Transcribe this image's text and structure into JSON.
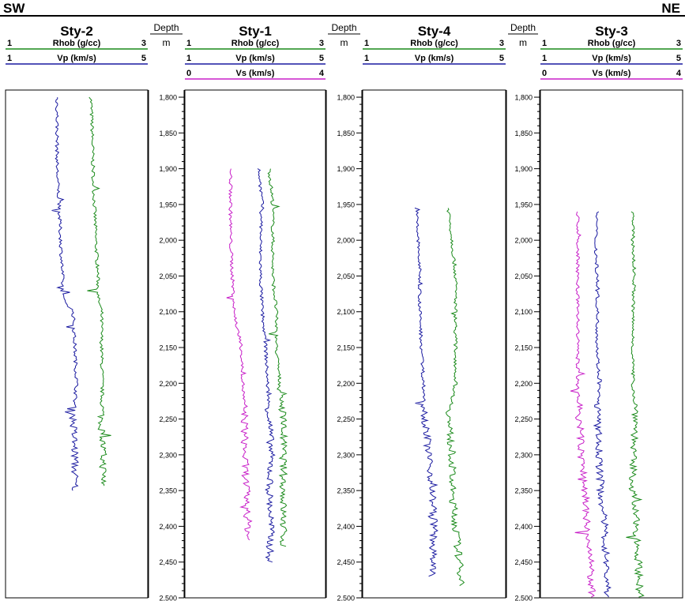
{
  "header": {
    "left": "SW",
    "right": "NE"
  },
  "depth_track": {
    "title": "Depth",
    "unit": "m"
  },
  "colors": {
    "rhob": "#1a8a1a",
    "vp": "#1a1aa0",
    "vs": "#c81ec8"
  },
  "chart_data": {
    "type": "line",
    "y_axis": {
      "label": "Depth",
      "unit": "m",
      "range": [
        1790,
        2500
      ],
      "ticks": [
        1800,
        1850,
        1900,
        1950,
        2000,
        2050,
        2100,
        2150,
        2200,
        2250,
        2300,
        2350,
        2400,
        2450,
        2500
      ],
      "tick_labels": [
        "1,800",
        "1,850",
        "1,900",
        "1,950",
        "2,000",
        "2,050",
        "2,100",
        "2,150",
        "2,200",
        "2,250",
        "2,300",
        "2,350",
        "2,400",
        "2,450",
        "2,500"
      ],
      "inverted": true
    },
    "wells": [
      {
        "name": "Sty-2",
        "curves": [
          {
            "name": "Rhob (g/cc)",
            "min_label": "1",
            "max_label": "3",
            "xmin": 1,
            "xmax": 3,
            "color": "#1a8a1a",
            "depth": [
              1800,
              1850,
              1900,
              1950,
              2000,
              2050,
              2080,
              2100,
              2150,
              2200,
              2250,
              2300,
              2345
            ],
            "values": [
              2.2,
              2.22,
              2.23,
              2.25,
              2.27,
              2.3,
              2.3,
              2.35,
              2.35,
              2.36,
              2.35,
              2.37,
              2.38
            ]
          },
          {
            "name": "Vp (km/s)",
            "min_label": "1",
            "max_label": "5",
            "xmin": 1,
            "xmax": 5,
            "color": "#1a1aa0",
            "depth": [
              1800,
              1850,
              1900,
              1950,
              2000,
              2050,
              2080,
              2100,
              2150,
              2200,
              2250,
              2300,
              2350
            ],
            "values": [
              2.45,
              2.45,
              2.45,
              2.5,
              2.55,
              2.6,
              2.6,
              2.9,
              2.95,
              3.0,
              2.9,
              2.95,
              2.95
            ]
          }
        ]
      },
      {
        "name": "Sty-1",
        "curves": [
          {
            "name": "Rhob (g/cc)",
            "min_label": "1",
            "max_label": "3",
            "xmin": 1,
            "xmax": 3,
            "color": "#1a8a1a",
            "depth": [
              1900,
              1950,
              2000,
              2050,
              2100,
              2150,
              2200,
              2250,
              2300,
              2350,
              2400,
              2430
            ],
            "values": [
              2.2,
              2.25,
              2.25,
              2.25,
              2.3,
              2.3,
              2.35,
              2.4,
              2.4,
              2.4,
              2.4,
              2.4
            ]
          },
          {
            "name": "Vp (km/s)",
            "min_label": "1",
            "max_label": "5",
            "xmin": 1,
            "xmax": 5,
            "color": "#1a1aa0",
            "depth": [
              1900,
              1950,
              2000,
              2050,
              2100,
              2150,
              2200,
              2250,
              2300,
              2350,
              2400,
              2450
            ],
            "values": [
              3.1,
              3.2,
              3.15,
              3.15,
              3.2,
              3.3,
              3.35,
              3.4,
              3.45,
              3.4,
              3.45,
              3.4
            ]
          },
          {
            "name": "Vs (km/s)",
            "min_label": "0",
            "max_label": "4",
            "xmin": 0,
            "xmax": 4,
            "color": "#c81ec8",
            "depth": [
              1900,
              1950,
              2000,
              2050,
              2100,
              2150,
              2200,
              2250,
              2300,
              2350,
              2400,
              2420
            ],
            "values": [
              1.3,
              1.3,
              1.3,
              1.35,
              1.4,
              1.6,
              1.65,
              1.7,
              1.7,
              1.75,
              1.8,
              1.8
            ]
          }
        ]
      },
      {
        "name": "Sty-4",
        "curves": [
          {
            "name": "Rhob (g/cc)",
            "min_label": "1",
            "max_label": "3",
            "xmin": 1,
            "xmax": 3,
            "color": "#1a8a1a",
            "depth": [
              1955,
              2000,
              2050,
              2100,
              2150,
              2200,
              2250,
              2300,
              2350,
              2400,
              2450,
              2485
            ],
            "values": [
              2.2,
              2.25,
              2.3,
              2.3,
              2.3,
              2.3,
              2.2,
              2.25,
              2.25,
              2.3,
              2.35,
              2.4
            ]
          },
          {
            "name": "Vp (km/s)",
            "min_label": "1",
            "max_label": "5",
            "xmin": 1,
            "xmax": 5,
            "color": "#1a1aa0",
            "depth": [
              1955,
              2000,
              2050,
              2100,
              2150,
              2200,
              2250,
              2300,
              2350,
              2400,
              2450,
              2470
            ],
            "values": [
              2.5,
              2.55,
              2.6,
              2.6,
              2.65,
              2.7,
              2.75,
              2.85,
              2.95,
              3.0,
              2.95,
              2.95
            ]
          }
        ]
      },
      {
        "name": "Sty-3",
        "curves": [
          {
            "name": "Rhob (g/cc)",
            "min_label": "1",
            "max_label": "3",
            "xmin": 1,
            "xmax": 3,
            "color": "#1a8a1a",
            "depth": [
              1960,
              2000,
              2050,
              2100,
              2150,
              2200,
              2250,
              2300,
              2350,
              2400,
              2450,
              2500
            ],
            "values": [
              2.3,
              2.3,
              2.32,
              2.3,
              2.3,
              2.3,
              2.35,
              2.3,
              2.3,
              2.35,
              2.38,
              2.4
            ]
          },
          {
            "name": "Vp (km/s)",
            "min_label": "1",
            "max_label": "5",
            "xmin": 1,
            "xmax": 5,
            "color": "#1a1aa0",
            "depth": [
              1960,
              2000,
              2050,
              2100,
              2150,
              2200,
              2250,
              2300,
              2350,
              2400,
              2450,
              2500
            ],
            "values": [
              2.6,
              2.55,
              2.6,
              2.6,
              2.6,
              2.65,
              2.6,
              2.65,
              2.7,
              2.8,
              2.85,
              2.9
            ]
          },
          {
            "name": "Vs (km/s)",
            "min_label": "0",
            "max_label": "4",
            "xmin": 0,
            "xmax": 4,
            "color": "#c81ec8",
            "depth": [
              1960,
              2000,
              2050,
              2100,
              2150,
              2200,
              2250,
              2300,
              2350,
              2400,
              2450,
              2500
            ],
            "values": [
              1.05,
              1.05,
              1.05,
              1.05,
              1.05,
              1.05,
              1.1,
              1.15,
              1.25,
              1.3,
              1.4,
              1.45
            ]
          }
        ]
      }
    ]
  }
}
